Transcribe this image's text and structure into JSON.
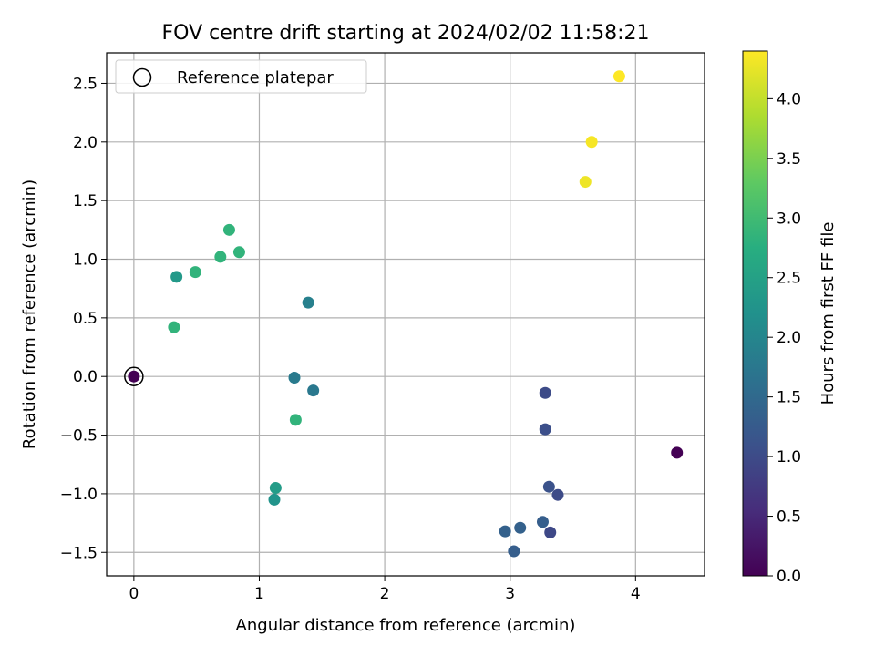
{
  "chart_data": {
    "type": "scatter",
    "title": "FOV centre drift starting at 2024/02/02 11:58:21",
    "xlabel": "Angular distance from reference (arcmin)",
    "ylabel": "Rotation from reference (arcmin)",
    "xlim": [
      -0.217,
      4.55
    ],
    "ylim": [
      -1.7,
      2.76
    ],
    "xticks": [
      0,
      1,
      2,
      3,
      4
    ],
    "xtick_labels": [
      "0",
      "1",
      "2",
      "3",
      "4"
    ],
    "yticks": [
      -1.5,
      -1.0,
      -0.5,
      0.0,
      0.5,
      1.0,
      1.5,
      2.0,
      2.5
    ],
    "ytick_labels": [
      "−1.5",
      "−1.0",
      "−0.5",
      "0.0",
      "0.5",
      "1.0",
      "1.5",
      "2.0",
      "2.5"
    ],
    "grid": true,
    "legend": {
      "position": "top-left",
      "entries": [
        "Reference platepar"
      ]
    },
    "reference": {
      "x": 0,
      "y": 0,
      "hours": 0.0
    },
    "colorbar": {
      "label": "Hours from first FF file",
      "colormap": "viridis",
      "range": [
        0,
        4.4
      ],
      "ticks": [
        0,
        0.5,
        1.0,
        1.5,
        2.0,
        2.5,
        3.0,
        3.5,
        4.0
      ],
      "tick_labels": [
        "0.0",
        "0.5",
        "1.0",
        "1.5",
        "2.0",
        "2.5",
        "3.0",
        "3.5",
        "4.0"
      ]
    },
    "points": [
      {
        "x": 0.0,
        "y": 0.0,
        "hours": 0.0
      },
      {
        "x": 4.33,
        "y": -0.65,
        "hours": 0.0
      },
      {
        "x": 3.28,
        "y": -0.14,
        "hours": 1.0
      },
      {
        "x": 3.28,
        "y": -0.45,
        "hours": 1.05
      },
      {
        "x": 3.31,
        "y": -0.94,
        "hours": 1.1
      },
      {
        "x": 3.38,
        "y": -1.01,
        "hours": 1.0
      },
      {
        "x": 3.32,
        "y": -1.33,
        "hours": 0.95
      },
      {
        "x": 3.26,
        "y": -1.24,
        "hours": 1.3
      },
      {
        "x": 3.08,
        "y": -1.29,
        "hours": 1.35
      },
      {
        "x": 2.96,
        "y": -1.32,
        "hours": 1.35
      },
      {
        "x": 3.03,
        "y": -1.49,
        "hours": 1.3
      },
      {
        "x": 1.43,
        "y": -0.12,
        "hours": 1.75
      },
      {
        "x": 1.28,
        "y": -0.01,
        "hours": 1.8
      },
      {
        "x": 1.39,
        "y": 0.63,
        "hours": 1.9
      },
      {
        "x": 1.12,
        "y": -1.05,
        "hours": 2.25
      },
      {
        "x": 1.13,
        "y": -0.95,
        "hours": 2.4
      },
      {
        "x": 0.34,
        "y": 0.85,
        "hours": 2.35
      },
      {
        "x": 1.29,
        "y": -0.37,
        "hours": 2.85
      },
      {
        "x": 0.32,
        "y": 0.42,
        "hours": 2.85
      },
      {
        "x": 0.49,
        "y": 0.89,
        "hours": 2.85
      },
      {
        "x": 0.69,
        "y": 1.02,
        "hours": 2.85
      },
      {
        "x": 0.76,
        "y": 1.25,
        "hours": 2.85
      },
      {
        "x": 0.84,
        "y": 1.06,
        "hours": 2.85
      },
      {
        "x": 3.6,
        "y": 1.66,
        "hours": 4.3
      },
      {
        "x": 3.65,
        "y": 2.0,
        "hours": 4.35
      },
      {
        "x": 3.87,
        "y": 2.56,
        "hours": 4.4
      }
    ]
  }
}
